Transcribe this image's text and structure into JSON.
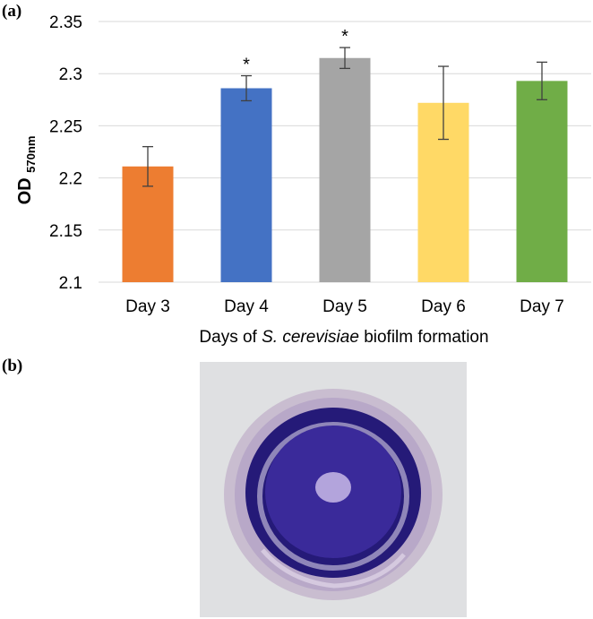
{
  "panels": {
    "a": "(a)",
    "b": "(b)"
  },
  "chart_data": {
    "type": "bar",
    "categories": [
      "Day 3",
      "Day 4",
      "Day 5",
      "Day 6",
      "Day 7"
    ],
    "values": [
      2.211,
      2.286,
      2.315,
      2.272,
      2.293
    ],
    "errors": [
      0.019,
      0.012,
      0.01,
      0.035,
      0.018
    ],
    "colors": [
      "#ed7d31",
      "#4472c4",
      "#a5a5a5",
      "#ffd966",
      "#70ad47"
    ],
    "significance": [
      "",
      "*",
      "*",
      "",
      ""
    ],
    "ylabel_main": "OD",
    "ylabel_sub": "570nm",
    "xlabel_prefix": "Days of ",
    "xlabel_italic": "S. cerevisiae",
    "xlabel_suffix": " biofilm formation",
    "ylim": [
      2.1,
      2.35
    ],
    "yticks": [
      "2.1",
      "2.15",
      "2.2",
      "2.25",
      "2.3",
      "2.35"
    ],
    "grid": true,
    "legend": "none"
  },
  "photo": {
    "background": "#dfe0e2",
    "rim": "#c9bdd0",
    "wall": "#b8a8c8",
    "stain": "#3a2a9a",
    "stain_dark": "#251a78",
    "center_spot": "#b3a4dc",
    "residue": "#e8e0ef"
  }
}
